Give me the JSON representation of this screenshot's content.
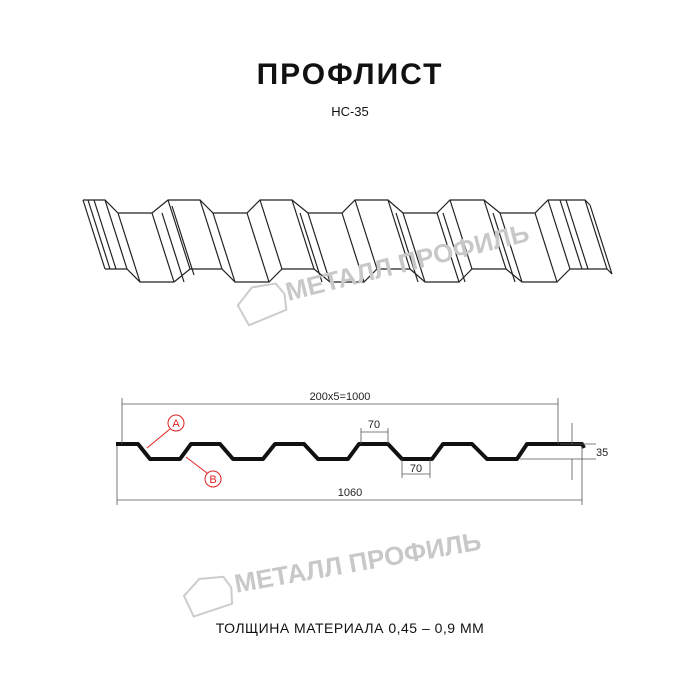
{
  "header": {
    "title": "ПРОФЛИСТ",
    "subtitle": "НС-35"
  },
  "watermark": {
    "text": "МЕТАЛЛ ПРОФИЛЬ"
  },
  "drawing": {
    "dim_pitch": "200x5=1000",
    "dim_top_width": "70",
    "dim_bottom_width": "70",
    "dim_height": "35",
    "dim_total": "1060",
    "label_a": "A",
    "label_b": "B"
  },
  "colors": {
    "profile": "#111111",
    "callout": "#e02020",
    "watermark": "#c8c8c8"
  },
  "footer": {
    "text": "ТОЛЩИНА МАТЕРИАЛА 0,45 – 0,9 ММ"
  }
}
